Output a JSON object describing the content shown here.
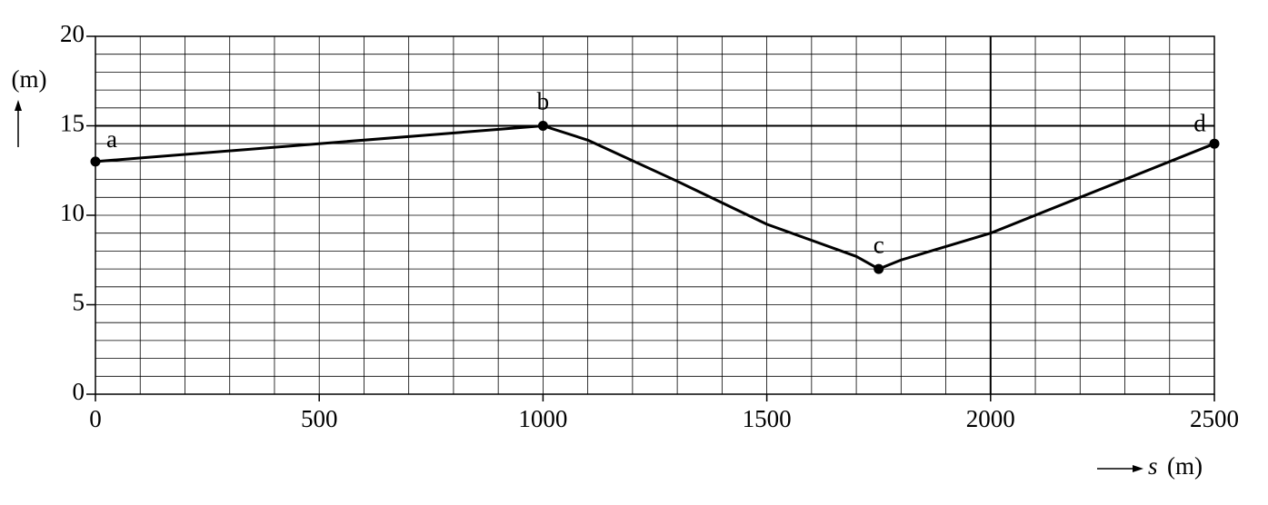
{
  "chart_data": {
    "type": "line",
    "y_label": "(m)",
    "x_label_symbol": "s",
    "x_label_unit": "(m)",
    "line": {
      "x": [
        0,
        1000,
        1100,
        1300,
        1500,
        1700,
        1750,
        1800,
        2000,
        2500
      ],
      "values": [
        13,
        15,
        14.2,
        11.9,
        9.5,
        7.7,
        7,
        7.5,
        9,
        14
      ]
    },
    "points": {
      "labels": [
        "a",
        "b",
        "c",
        "d"
      ],
      "x": [
        0,
        1000,
        1750,
        2500
      ],
      "values": [
        13,
        15,
        7,
        14
      ]
    },
    "color": "#000000",
    "xlim": [
      0,
      2500
    ],
    "ylim": [
      0,
      20
    ],
    "xticks": [
      0,
      500,
      1000,
      1500,
      2000,
      2500
    ],
    "yticks": [
      0,
      5,
      10,
      15,
      20
    ],
    "grid": true,
    "xgrid_step": 100,
    "ygrid_step": 1,
    "emphasized_x": [
      2000
    ],
    "emphasized_y": [
      15
    ]
  }
}
